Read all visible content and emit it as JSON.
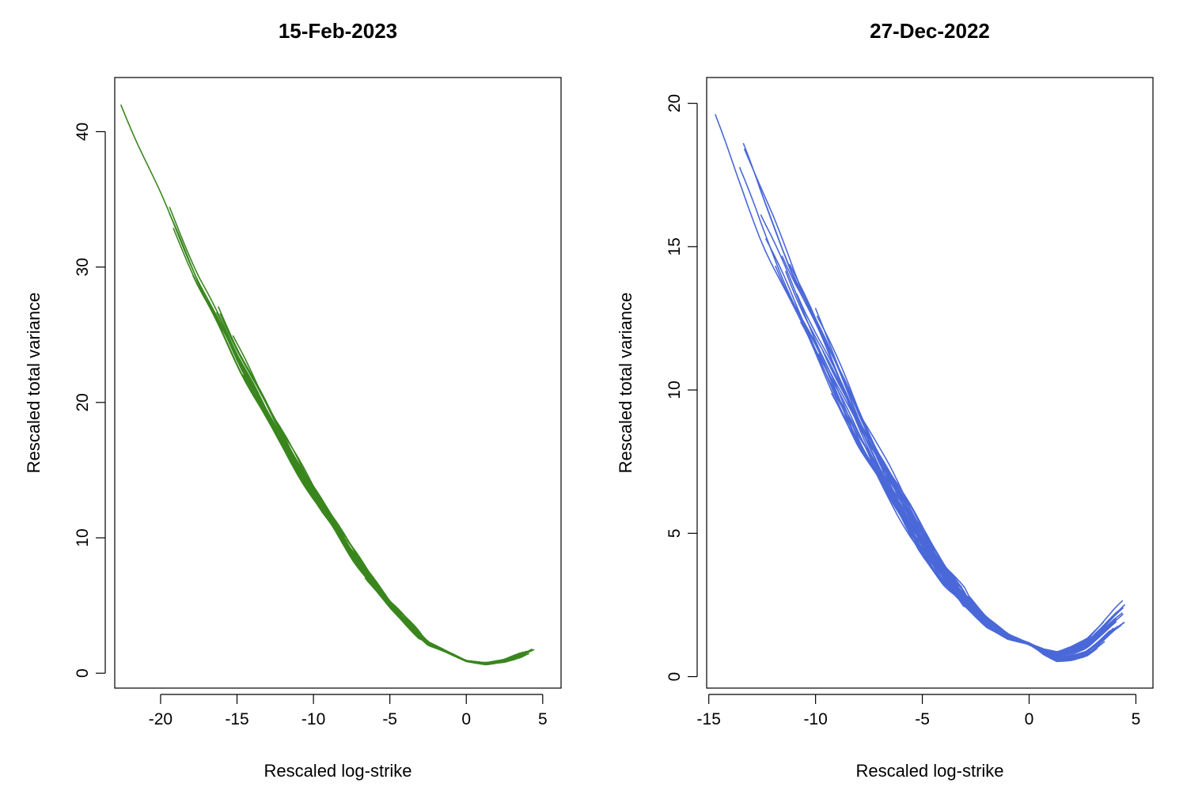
{
  "chart_data": [
    {
      "type": "line",
      "title": "15-Feb-2023",
      "xlabel": "Rescaled log-strike",
      "ylabel": "Rescaled total variance",
      "xlim": [
        -23.0,
        6.2
      ],
      "ylim": [
        -1.1,
        44.0
      ],
      "xticks": [
        -20,
        -15,
        -10,
        -5,
        0,
        5
      ],
      "yticks": [
        0,
        10,
        20,
        30,
        40
      ],
      "grid": false,
      "legend": "none",
      "color": "#3a861e",
      "base_curve": {
        "x": [
          -22.6,
          -20,
          -17.5,
          -15,
          -12.5,
          -10,
          -7.5,
          -5,
          -2.5,
          0,
          1.3,
          2.5,
          3.5,
          4.5
        ],
        "y": [
          42.5,
          35.8,
          29.3,
          23.5,
          18.1,
          13.3,
          8.9,
          5.0,
          2.2,
          0.9,
          0.7,
          0.9,
          1.3,
          1.8
        ]
      },
      "series_count": 40
    },
    {
      "type": "line",
      "title": "27-Dec-2022",
      "xlabel": "Rescaled log-strike",
      "ylabel": "Rescaled total variance",
      "xlim": [
        -15.1,
        5.8
      ],
      "ylim": [
        -0.4,
        20.9
      ],
      "xticks": [
        -15,
        -10,
        -5,
        0,
        5
      ],
      "yticks": [
        0,
        5,
        10,
        15,
        20
      ],
      "grid": false,
      "legend": "none",
      "color": "#4a68d8",
      "base_curve": {
        "x": [
          -14.7,
          -13.8,
          -12.5,
          -11.0,
          -10.0,
          -9.0,
          -8.0,
          -7.0,
          -6.0,
          -5.0,
          -4.0,
          -3.0,
          -2.0,
          -1.0,
          0.0,
          0.7,
          1.3,
          2.0,
          2.7,
          3.3,
          4.0
        ],
        "y": [
          20.5,
          18.6,
          16.1,
          13.5,
          11.9,
          10.3,
          8.7,
          7.3,
          6.0,
          4.7,
          3.6,
          2.7,
          1.9,
          1.4,
          1.15,
          0.85,
          0.7,
          0.8,
          1.0,
          1.4,
          1.9
        ]
      },
      "series_count": 40
    }
  ]
}
